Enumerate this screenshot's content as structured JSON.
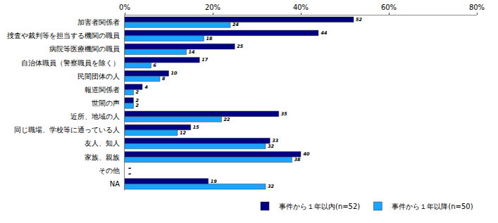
{
  "chart_data": {
    "type": "bar",
    "orientation": "horizontal",
    "categories": [
      "加害者関係者",
      "捜査や裁判等を担当する機関の職員",
      "病院等医療機関の職員",
      "自治体職員（警察職員を除く）",
      "民間団体の人",
      "報道関係者",
      "世間の声",
      "近所、地域の人",
      "同じ職場、学校等に通っている人",
      "友人、知人",
      "家族、親族",
      "その他",
      "NA"
    ],
    "series": [
      {
        "name": "事件から１年以内(n=52)",
        "color": "#000080",
        "values": [
          52,
          44,
          25,
          17,
          10,
          4,
          2,
          35,
          15,
          33,
          40,
          null,
          19
        ],
        "value_labels": [
          "52",
          "44",
          "25",
          "17",
          "10",
          "4",
          "2",
          "35",
          "15",
          "33",
          "40",
          "-",
          "19"
        ]
      },
      {
        "name": "事件から１年以降(n=50)",
        "color": "#1aa3ff",
        "values": [
          24,
          18,
          14,
          6,
          8,
          2,
          2,
          22,
          12,
          32,
          38,
          null,
          32
        ],
        "value_labels": [
          "24",
          "18",
          "14",
          "6",
          "8",
          "2",
          "2",
          "22",
          "12",
          "32",
          "38",
          "-",
          "32"
        ]
      }
    ],
    "xlim": [
      0,
      80
    ],
    "xticks": [
      {
        "value": 0,
        "label": "0%"
      },
      {
        "value": 20,
        "label": "20%"
      },
      {
        "value": 40,
        "label": "40%"
      },
      {
        "value": 60,
        "label": "60%"
      },
      {
        "value": 80,
        "label": "80%"
      }
    ],
    "grid": false,
    "legend": "bottom",
    "data_labels": true
  }
}
